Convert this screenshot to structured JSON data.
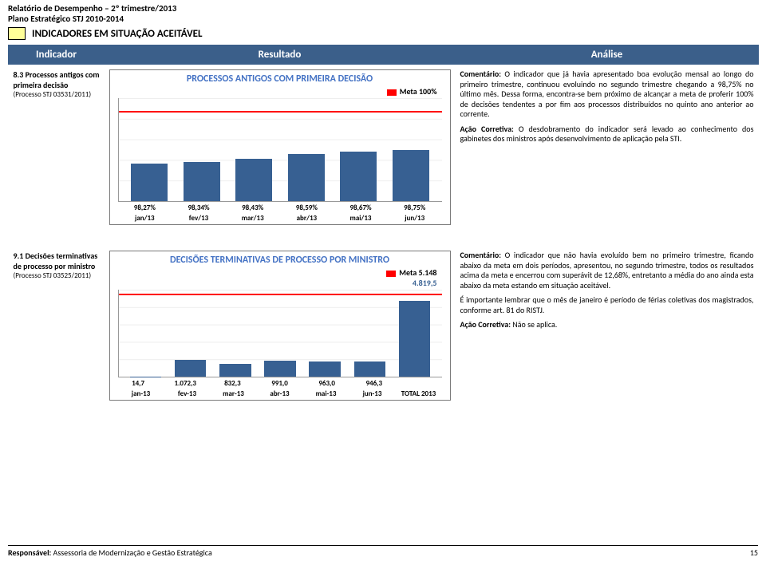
{
  "header": {
    "line1": "Relatório de Desempenho – 2º trimestre/2013",
    "line2": "Plano Estratégico STJ 2010-2014",
    "legend_color": "#ffff99",
    "legend_text": "INDICADORES EM SITUAÇÃO ACEITÁVEL"
  },
  "table": {
    "headers": [
      "Indicador",
      "Resultado",
      "Análise"
    ]
  },
  "row1": {
    "indicator_title": "8.3 Processos antigos com primeira decisão",
    "indicator_sub": "(Processo STJ 03531/2011)",
    "chart": {
      "title": "PROCESSOS ANTIGOS COM PRIMEIRA DECISÃO",
      "meta_label": "Meta 100%",
      "meta_color": "#ff0000",
      "meta_value_pct": 100,
      "categories": [
        "jan/13",
        "fev/13",
        "mar/13",
        "abr/13",
        "mai/13",
        "jun/13"
      ],
      "values_label": [
        "98,27%",
        "98,34%",
        "98,43%",
        "98,59%",
        "98,67%",
        "98,75%"
      ],
      "values_pct": [
        98.27,
        98.34,
        98.43,
        98.59,
        98.67,
        98.75
      ],
      "y_min_display": 97,
      "y_max_display": 100.5,
      "bar_color": "#376092",
      "background_color": "#ffffff",
      "grid_color": "#e0e0e0"
    },
    "analysis": {
      "p1_label": "Comentário:",
      "p1": " O indicador que já havia apresentado boa evolução mensal ao longo do primeiro trimestre, continuou evoluindo no segundo trimestre chegando a 98,75% no último mês. Dessa forma, encontra-se bem próximo de alcançar a meta de proferir 100% de decisões  tendentes a por fim aos processos distribuídos no quinto ano anterior ao corrente.",
      "p2_label": "Ação Corretiva:",
      "p2": " O desdobramento do indicador será levado ao conhecimento dos gabinetes dos ministros após desenvolvimento de aplicação pela STI."
    }
  },
  "row2": {
    "indicator_title": "9.1 Decisões terminativas de processo por ministro",
    "indicator_sub": "(Processo STJ 03525/2011)",
    "chart": {
      "title": "DECISÕES TERMINATIVAS DE PROCESSO POR MINISTRO",
      "meta_label": "Meta 5.148",
      "meta_sub": "4.819,5",
      "meta_color": "#ff0000",
      "meta_value": 5148,
      "categories": [
        "jan-13",
        "fev-13",
        "mar-13",
        "abr-13",
        "mai-13",
        "jun-13",
        "TOTAL 2013"
      ],
      "values_main": [
        null,
        1072.3,
        832.3,
        991.0,
        963.0,
        946.3,
        4819.5
      ],
      "values_label_bottom": [
        "14,7",
        "1.072,3",
        "832,3",
        "991,0",
        "963,0",
        "946,3",
        ""
      ],
      "jan_value": 14.7,
      "y_max": 5500,
      "bar_color": "#376092",
      "background_color": "#ffffff",
      "grid_color": "#e0e0e0"
    },
    "analysis": {
      "p1_label": "Comentário:",
      "p1": " O indicador que não havia evoluído bem no primeiro trimestre, ficando abaixo da meta em dois períodos,  apresentou, no segundo trimestre, todos os resultados acima da meta e encerrou  com superávit de 12,68%, entretanto a média do ano ainda esta abaixo da meta estando em situação aceitável.",
      "p1b": "        É importante lembrar que o mês de janeiro é período de férias coletivas dos magistrados, conforme art. 81 do RISTJ.",
      "p2_label": "Ação Corretiva:",
      "p2": " Não se aplica."
    }
  },
  "footer": {
    "left_bold": "Responsável:",
    "left_rest": " Assessoria de Modernização e Gestão Estratégica",
    "page": "15"
  }
}
